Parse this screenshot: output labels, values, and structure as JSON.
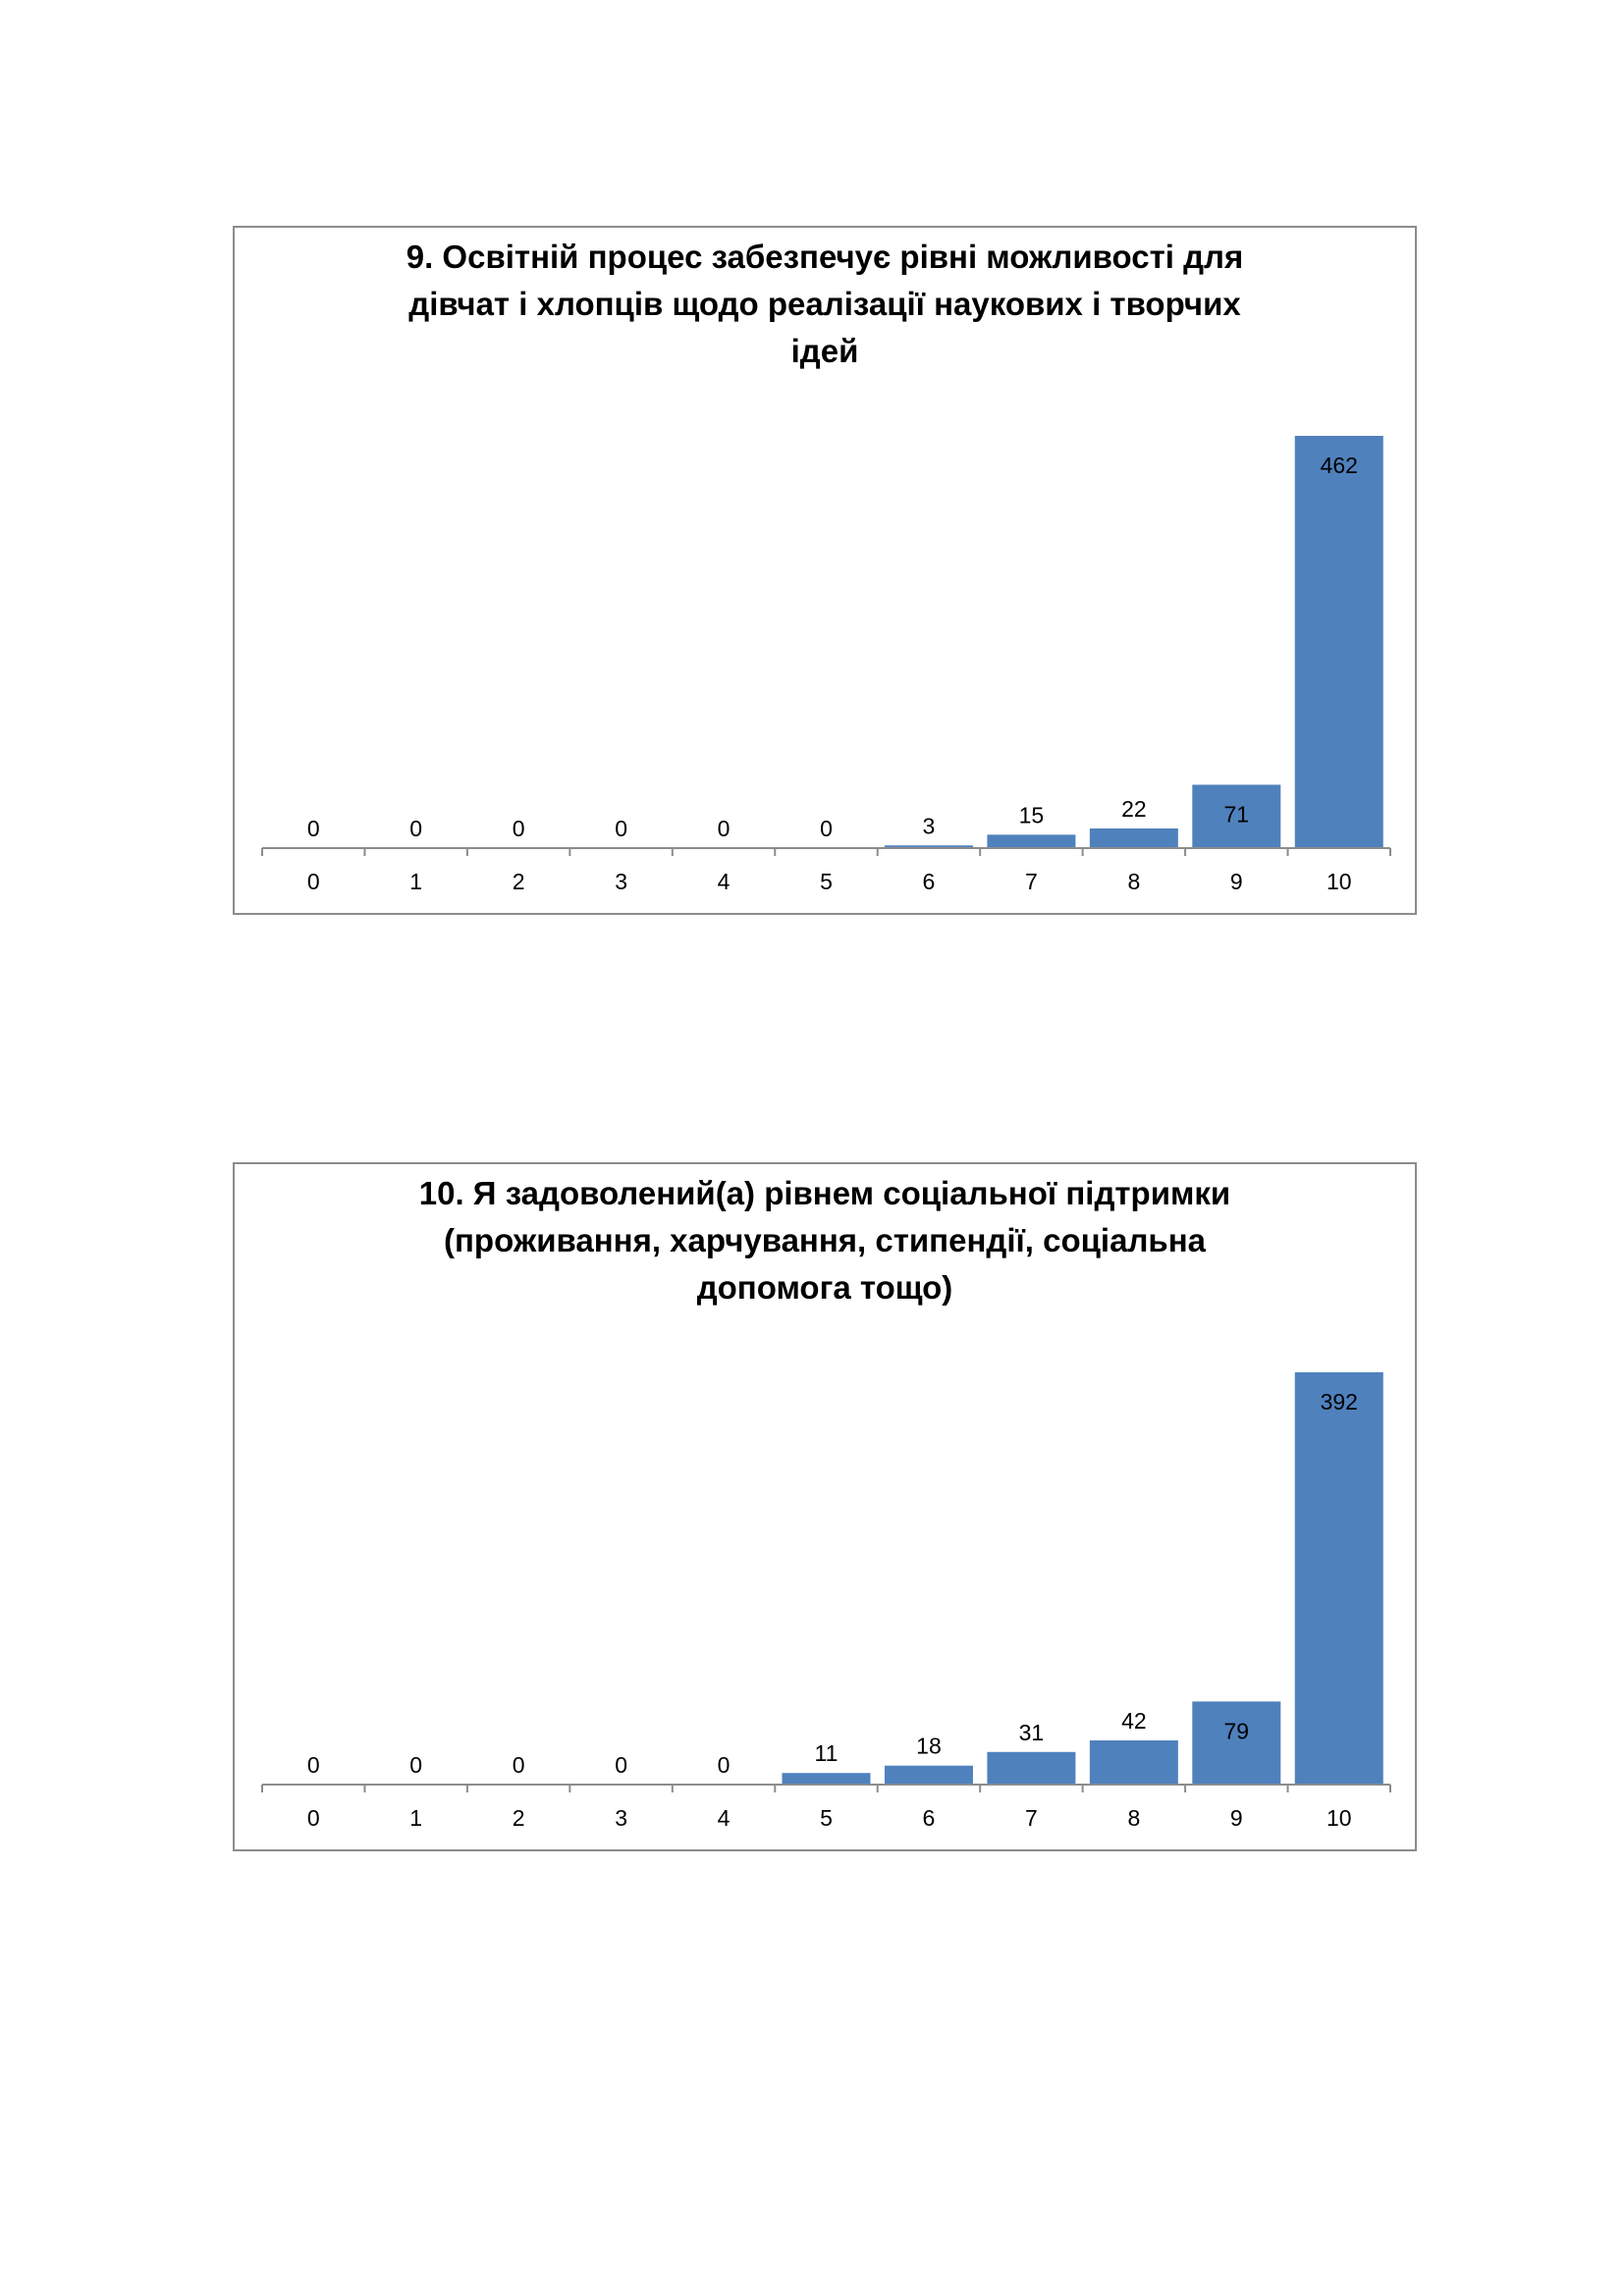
{
  "chart_data": [
    {
      "type": "bar",
      "title": "9. Освітній процес забезпечує рівні можливості  для\nдівчат і хлопців щодо реалізації наукових  і творчих\nідей",
      "categories": [
        "0",
        "1",
        "2",
        "3",
        "4",
        "5",
        "6",
        "7",
        "8",
        "9",
        "10"
      ],
      "values": [
        0,
        0,
        0,
        0,
        0,
        0,
        3,
        15,
        22,
        71,
        462
      ],
      "data_labels": [
        "0",
        "0",
        "0",
        "0",
        "0",
        "0",
        "3",
        "15",
        "22",
        "71",
        "462"
      ],
      "xlabel": "",
      "ylabel": "",
      "ylim": [
        0,
        462
      ],
      "grid": false,
      "legend": "none",
      "bar_color": "#4f81bd"
    },
    {
      "type": "bar",
      "title": "10. Я задоволений(а)  рівнем соціальної підтримки\n(проживання, харчування, стипендії, соціальна\nдопомога тощо)",
      "categories": [
        "0",
        "1",
        "2",
        "3",
        "4",
        "5",
        "6",
        "7",
        "8",
        "9",
        "10"
      ],
      "values": [
        0,
        0,
        0,
        0,
        0,
        11,
        18,
        31,
        42,
        79,
        392
      ],
      "data_labels": [
        "0",
        "0",
        "0",
        "0",
        "0",
        "11",
        "18",
        "31",
        "42",
        "79",
        "392"
      ],
      "xlabel": "",
      "ylabel": "",
      "ylim": [
        0,
        392
      ],
      "grid": false,
      "legend": "none",
      "bar_color": "#4f81bd"
    }
  ]
}
